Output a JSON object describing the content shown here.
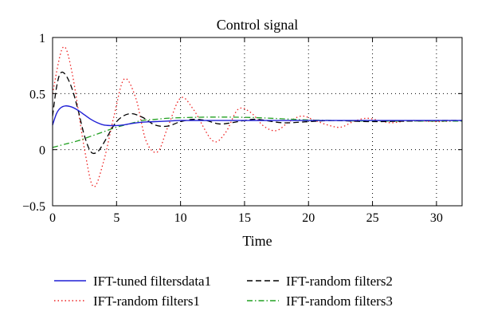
{
  "chart_data": {
    "type": "line",
    "title": "Control signal",
    "xlabel": "Time",
    "ylabel": "",
    "xlim": [
      0,
      32
    ],
    "ylim": [
      -0.5,
      1
    ],
    "xticks": [
      0,
      5,
      10,
      15,
      20,
      25,
      30
    ],
    "yticks": [
      -0.5,
      0,
      0.5,
      1
    ],
    "ytick_labels": [
      "−0.5",
      "0",
      "0.5",
      "1"
    ],
    "grid": true,
    "legend_position": "below",
    "series": [
      {
        "name": "IFT-tuned filtersdata1",
        "color": "#1f1fd6",
        "style": "solid",
        "x": [
          0,
          0.3,
          0.6,
          1,
          1.5,
          2,
          2.5,
          3,
          3.5,
          4,
          4.5,
          5,
          5.5,
          6,
          7,
          8,
          9,
          10,
          12,
          14,
          16,
          20,
          25,
          30,
          32
        ],
        "y": [
          0.22,
          0.32,
          0.37,
          0.39,
          0.38,
          0.35,
          0.31,
          0.27,
          0.24,
          0.22,
          0.215,
          0.215,
          0.22,
          0.23,
          0.245,
          0.25,
          0.255,
          0.26,
          0.26,
          0.26,
          0.26,
          0.26,
          0.26,
          0.26,
          0.26
        ]
      },
      {
        "name": "IFT-random filters2",
        "color": "#000000",
        "style": "dashed",
        "x": [
          0,
          0.3,
          0.6,
          1,
          1.5,
          2,
          2.5,
          3,
          3.5,
          4,
          5,
          6,
          7,
          8,
          9,
          10,
          11,
          12,
          13,
          14,
          15,
          16,
          18,
          20,
          22,
          25,
          30,
          32
        ],
        "y": [
          0.3,
          0.55,
          0.68,
          0.67,
          0.55,
          0.35,
          0.12,
          -0.02,
          -0.02,
          0.06,
          0.25,
          0.32,
          0.29,
          0.22,
          0.21,
          0.25,
          0.27,
          0.26,
          0.23,
          0.24,
          0.26,
          0.27,
          0.24,
          0.25,
          0.26,
          0.25,
          0.26,
          0.26
        ]
      },
      {
        "name": "IFT-random filters1",
        "color": "#ee2222",
        "style": "dotted",
        "x": [
          0,
          0.8,
          1.5,
          2.5,
          3.2,
          4,
          4.8,
          5.6,
          6.5,
          7.3,
          8.2,
          9,
          10,
          11,
          12.5,
          13.5,
          14.5,
          15.5,
          16.5,
          17.5,
          18.5,
          19.5,
          20.5,
          21.5,
          22.5,
          23.5,
          24.5,
          25.5,
          26.5,
          28,
          30,
          32
        ],
        "y": [
          0.5,
          0.91,
          0.7,
          0.0,
          -0.33,
          -0.1,
          0.3,
          0.63,
          0.46,
          0.08,
          -0.02,
          0.2,
          0.46,
          0.36,
          0.08,
          0.15,
          0.36,
          0.33,
          0.21,
          0.17,
          0.25,
          0.3,
          0.26,
          0.22,
          0.2,
          0.25,
          0.28,
          0.26,
          0.24,
          0.26,
          0.25,
          0.26
        ]
      },
      {
        "name": "IFT-random filters3",
        "color": "#22a022",
        "style": "dashdot",
        "x": [
          0,
          1,
          2,
          3,
          4,
          5,
          6,
          7,
          8,
          9,
          10,
          12,
          14,
          16,
          18,
          20,
          22,
          25,
          30,
          32
        ],
        "y": [
          0.02,
          0.05,
          0.08,
          0.12,
          0.16,
          0.2,
          0.23,
          0.26,
          0.27,
          0.28,
          0.285,
          0.29,
          0.29,
          0.285,
          0.275,
          0.265,
          0.26,
          0.255,
          0.255,
          0.255
        ]
      }
    ]
  }
}
